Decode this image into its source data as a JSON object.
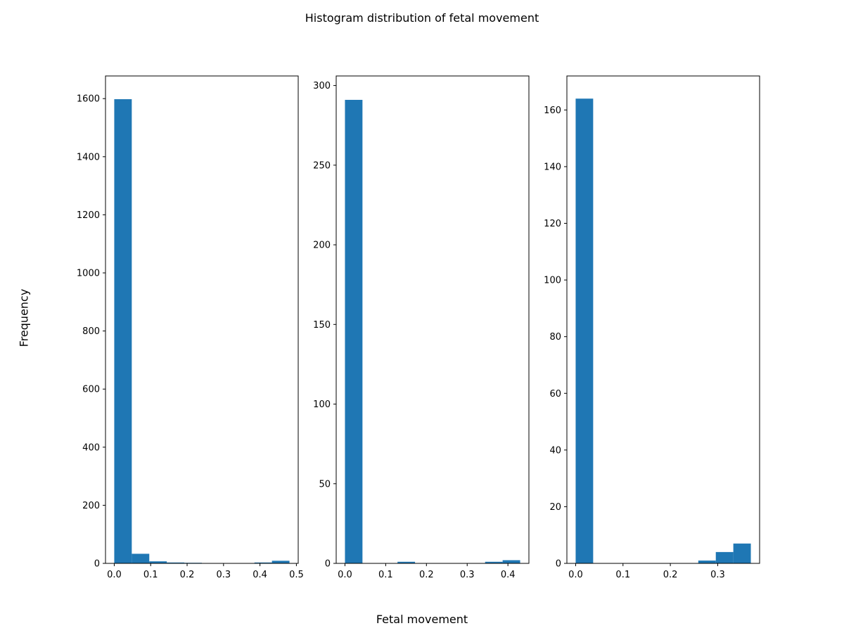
{
  "figure": {
    "title": "Histogram distribution of fetal movement",
    "xlabel": "Fetal movement",
    "ylabel": "Frequency",
    "bar_color": "#1f77b4"
  },
  "chart_data": [
    {
      "type": "bar",
      "title": "",
      "xlabel": "",
      "ylabel": "",
      "bin_edges": [
        0.0,
        0.0481,
        0.0962,
        0.1443,
        0.1924,
        0.2405,
        0.2886,
        0.3367,
        0.3848,
        0.4329,
        0.481
      ],
      "values": [
        1598,
        33,
        7,
        3,
        2,
        0,
        0,
        0,
        3,
        9
      ],
      "xlim": [
        -0.024,
        0.505
      ],
      "ylim": [
        0,
        1678
      ],
      "xticks": [
        0.0,
        0.1,
        0.2,
        0.3,
        0.4,
        0.5
      ],
      "xtick_labels": [
        "0.0",
        "0.1",
        "0.2",
        "0.3",
        "0.4",
        "0.5"
      ],
      "yticks": [
        0,
        200,
        400,
        600,
        800,
        1000,
        1200,
        1400,
        1600
      ],
      "ytick_labels": [
        "0",
        "200",
        "400",
        "600",
        "800",
        "1000",
        "1200",
        "1400",
        "1600"
      ],
      "grid": false
    },
    {
      "type": "bar",
      "title": "",
      "xlabel": "",
      "ylabel": "",
      "bin_edges": [
        0.0,
        0.043,
        0.086,
        0.129,
        0.172,
        0.215,
        0.258,
        0.301,
        0.344,
        0.387,
        0.43
      ],
      "values": [
        291,
        0,
        0,
        1,
        0,
        0,
        0,
        0,
        1,
        2
      ],
      "xlim": [
        -0.0215,
        0.4515
      ],
      "ylim": [
        0,
        306
      ],
      "xticks": [
        0.0,
        0.1,
        0.2,
        0.3,
        0.4
      ],
      "xtick_labels": [
        "0.0",
        "0.1",
        "0.2",
        "0.3",
        "0.4"
      ],
      "yticks": [
        0,
        50,
        100,
        150,
        200,
        250,
        300
      ],
      "ytick_labels": [
        "0",
        "50",
        "100",
        "150",
        "200",
        "250",
        "300"
      ],
      "grid": false
    },
    {
      "type": "bar",
      "title": "",
      "xlabel": "",
      "ylabel": "",
      "bin_edges": [
        0.0,
        0.037,
        0.074,
        0.111,
        0.148,
        0.185,
        0.222,
        0.259,
        0.296,
        0.333,
        0.37
      ],
      "values": [
        164,
        0,
        0,
        0,
        0,
        0,
        0,
        1,
        4,
        7
      ],
      "xlim": [
        -0.0185,
        0.3885
      ],
      "ylim": [
        0,
        172
      ],
      "xticks": [
        0.0,
        0.1,
        0.2,
        0.3
      ],
      "xtick_labels": [
        "0.0",
        "0.1",
        "0.2",
        "0.3"
      ],
      "yticks": [
        0,
        20,
        40,
        60,
        80,
        100,
        120,
        140,
        160
      ],
      "ytick_labels": [
        "0",
        "20",
        "40",
        "60",
        "80",
        "100",
        "120",
        "140",
        "160"
      ],
      "grid": false
    }
  ]
}
